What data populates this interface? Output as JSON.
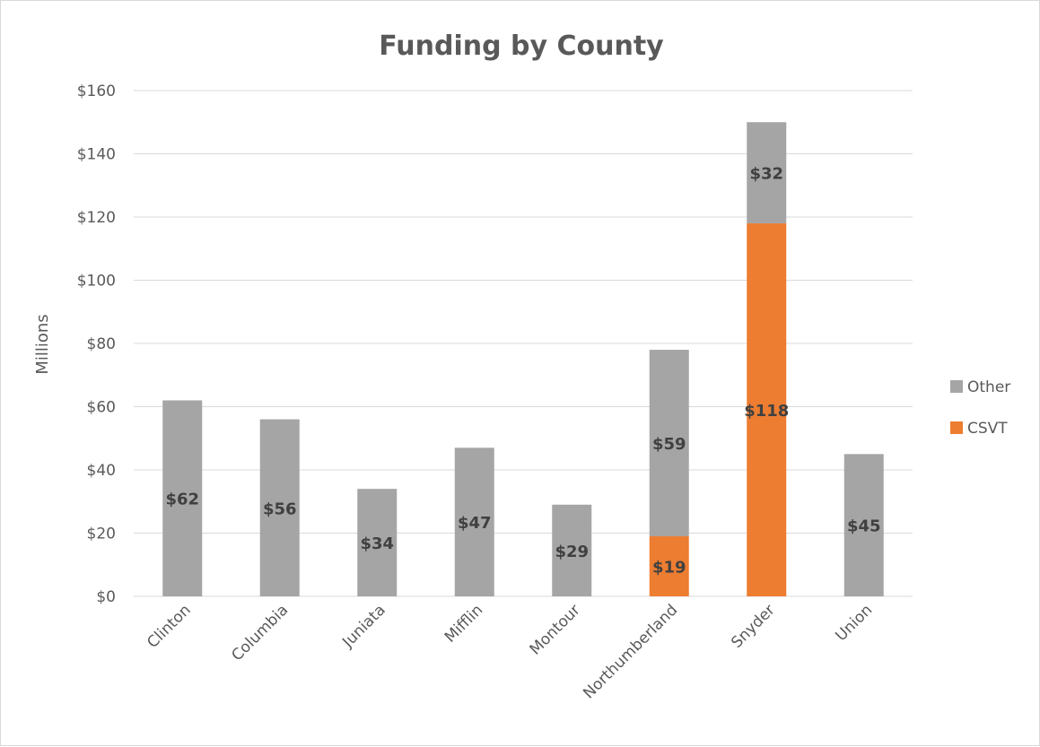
{
  "chart_data": {
    "type": "bar",
    "stacked": true,
    "title": "Funding by County",
    "ylabel": "Millions",
    "xlabel": "",
    "ylim": [
      0,
      160
    ],
    "ytick_step": 20,
    "ytick_labels": [
      "$0",
      "$20",
      "$40",
      "$60",
      "$80",
      "$100",
      "$120",
      "$140",
      "$160"
    ],
    "grid": true,
    "legend_position": "right",
    "categories": [
      "Clinton",
      "Columbia",
      "Juniata",
      "Mifflin",
      "Montour",
      "Northumberland",
      "Snyder",
      "Union"
    ],
    "series": [
      {
        "name": "CSVT",
        "color": "#ed7d31",
        "values": [
          0,
          0,
          0,
          0,
          0,
          19,
          118,
          0
        ],
        "labels": [
          "",
          "",
          "",
          "",
          "",
          "$19",
          "$118",
          ""
        ]
      },
      {
        "name": "Other",
        "color": "#a5a5a5",
        "values": [
          62,
          56,
          34,
          47,
          29,
          59,
          32,
          45
        ],
        "labels": [
          "$62",
          "$56",
          "$34",
          "$47",
          "$29",
          "$59",
          "$32",
          "$45"
        ]
      }
    ],
    "legend_order": [
      "Other",
      "CSVT"
    ]
  }
}
